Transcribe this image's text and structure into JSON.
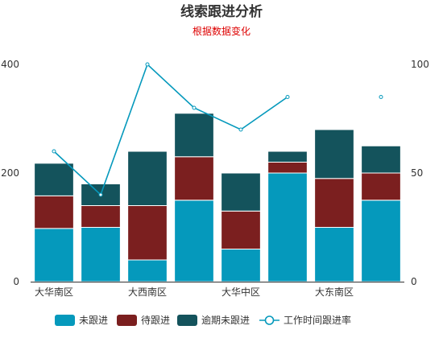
{
  "chart_data": {
    "type": "bar",
    "stacked": true,
    "title": "线索跟进分析",
    "subtitle": "根据数据变化",
    "categories": [
      "大华南区",
      "",
      "大西南区",
      "",
      "大华中区",
      "",
      "大东南区",
      ""
    ],
    "series": [
      {
        "name": "未跟进",
        "type": "bar",
        "axis": "left",
        "color": "#0599bc",
        "values": [
          98,
          100,
          40,
          150,
          60,
          200,
          100,
          150
        ]
      },
      {
        "name": "待跟进",
        "type": "bar",
        "axis": "left",
        "color": "#7b1f1f",
        "values": [
          60,
          40,
          100,
          80,
          70,
          20,
          90,
          50
        ]
      },
      {
        "name": "逾期未跟进",
        "type": "bar",
        "axis": "left",
        "color": "#14535c",
        "values": [
          60,
          40,
          100,
          80,
          70,
          20,
          90,
          50
        ]
      },
      {
        "name": "工作时间跟进率",
        "type": "line",
        "axis": "right",
        "color": "#0599bc",
        "values": [
          60,
          40,
          100,
          80,
          70,
          85,
          null,
          85
        ]
      }
    ],
    "y_left": {
      "min": 0,
      "max": 400,
      "ticks": [
        0,
        200,
        400
      ]
    },
    "y_right": {
      "min": 0,
      "max": 100,
      "ticks": [
        0,
        50,
        100
      ]
    },
    "legend_position": "bottom",
    "grid": false
  }
}
